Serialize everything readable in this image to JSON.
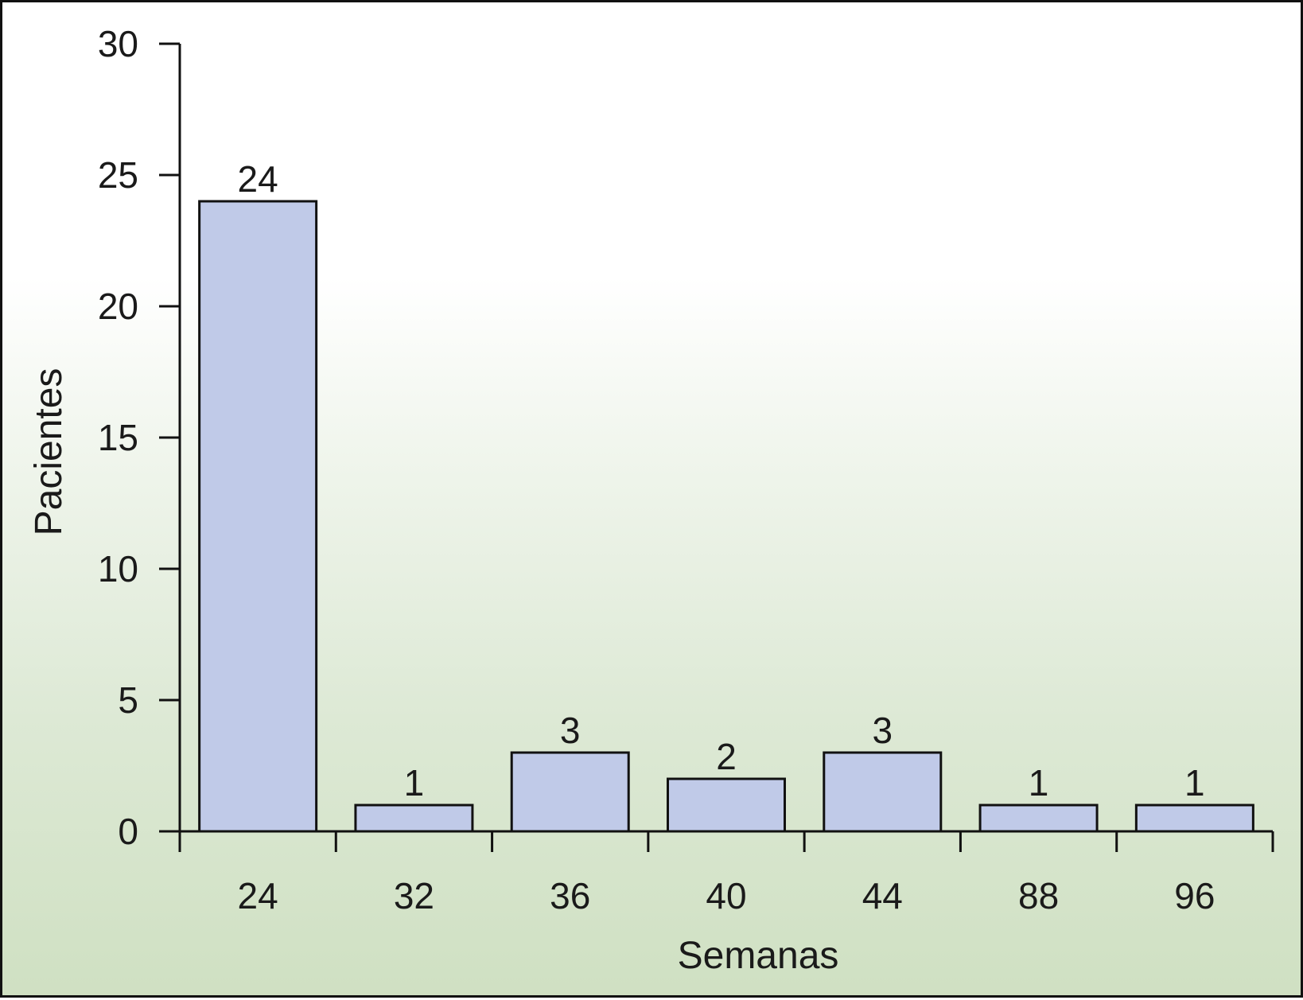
{
  "chart_data": {
    "type": "bar",
    "categories": [
      "24",
      "32",
      "36",
      "40",
      "44",
      "88",
      "96"
    ],
    "values": [
      24,
      1,
      3,
      2,
      3,
      1,
      1
    ],
    "data_labels": [
      "24",
      "1",
      "3",
      "2",
      "3",
      "1",
      "1"
    ],
    "xlabel": "Semanas",
    "ylabel": "Pacientes",
    "ylim": [
      0,
      30
    ],
    "yticks": [
      "0",
      "5",
      "10",
      "15",
      "20",
      "25",
      "30"
    ],
    "grid": false,
    "legend": "none",
    "colors": {
      "bar_fill": "#c0cae8",
      "bar_stroke": "#111111",
      "axis": "#111111",
      "background_top": "#ffffff",
      "background_bottom": "#cfe0c2"
    }
  }
}
